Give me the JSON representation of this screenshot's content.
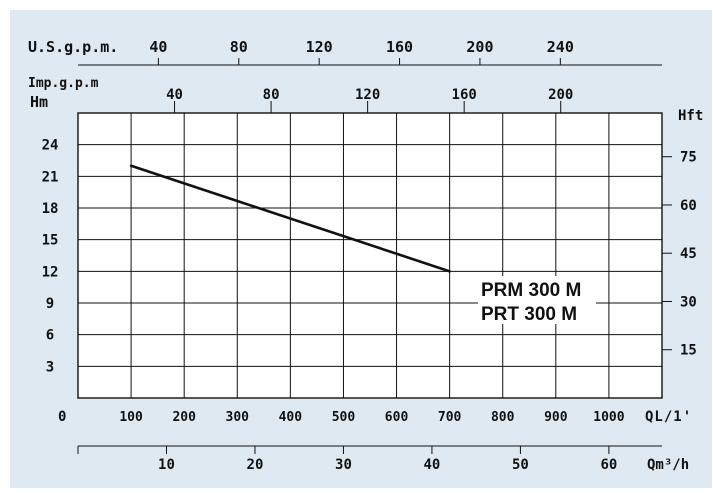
{
  "colors": {
    "background": "#dfe9f1",
    "plot": "#ffffff",
    "ink": "#111111"
  },
  "labels": {
    "usgpm": "U.S.g.p.m.",
    "impgpm": "Imp.g.p.m",
    "hm": "Hm",
    "hft": "Hft",
    "ql": "QL/1'",
    "qm3h": "Qm³/h",
    "zero": "0",
    "model_line1": "PRM 300 M",
    "model_line2": "PRT  300 M"
  },
  "chart_data": {
    "type": "line",
    "series": [
      {
        "x": [
          100,
          700
        ],
        "y": [
          22,
          12
        ]
      }
    ],
    "x_axis_ql": {
      "ticks": [
        100,
        200,
        300,
        400,
        500,
        600,
        700,
        800,
        900,
        1000
      ],
      "range": [
        0,
        1100
      ]
    },
    "y_axis_hm": {
      "ticks": [
        3,
        6,
        9,
        12,
        15,
        18,
        21,
        24
      ],
      "range": [
        0,
        27
      ]
    },
    "y_axis_hft": {
      "ticks": [
        15,
        30,
        45,
        60,
        75
      ]
    },
    "x_axis_usgpm": {
      "ticks": [
        40,
        80,
        120,
        160,
        200,
        240
      ]
    },
    "x_axis_impgpm": {
      "ticks": [
        40,
        80,
        120,
        160,
        200
      ]
    },
    "x_axis_qm3h": {
      "ticks": [
        10,
        20,
        30,
        40,
        50,
        60
      ]
    },
    "grid": true
  }
}
